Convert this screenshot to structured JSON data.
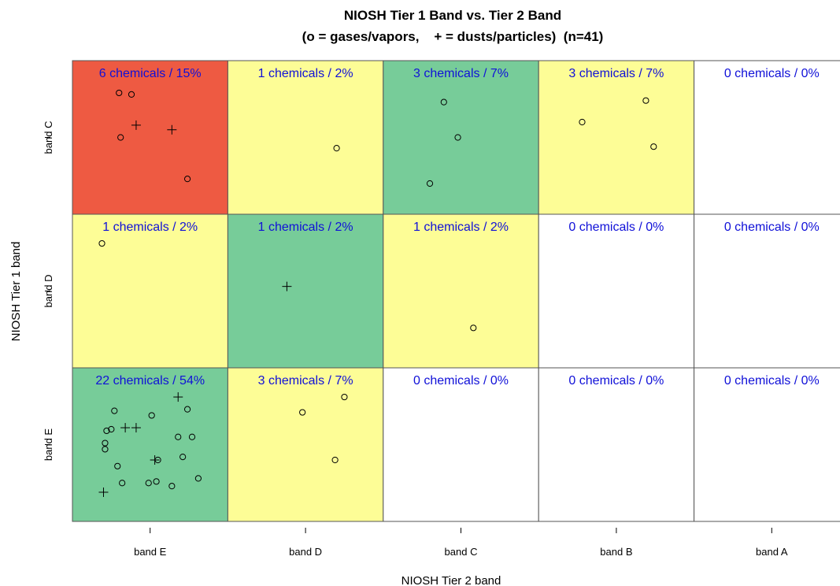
{
  "chart_data": {
    "type": "scatter",
    "title": "NIOSH Tier 1 Band vs. Tier 2 Band",
    "subtitle": "(o = gases/vapors,    + = dusts/particles)  (n=41)",
    "xlabel": "NIOSH Tier 2 band",
    "ylabel": "NIOSH Tier 1 band",
    "x_categories": [
      "band E",
      "band D",
      "band C",
      "band B",
      "band A"
    ],
    "y_categories": [
      "band E",
      "band D",
      "band C"
    ],
    "colors": {
      "red": "#ee5a42",
      "yellow": "#fdfd96",
      "green": "#77cc99",
      "white": "#ffffff",
      "label_text": "#1010d8",
      "grid": "#555555"
    },
    "cells": [
      {
        "x": "band E",
        "y": "band C",
        "label": "6 chemicals  /  15%",
        "fill": "red"
      },
      {
        "x": "band D",
        "y": "band C",
        "label": "1 chemicals  /  2%",
        "fill": "yellow"
      },
      {
        "x": "band C",
        "y": "band C",
        "label": "3 chemicals  /  7%",
        "fill": "green"
      },
      {
        "x": "band B",
        "y": "band C",
        "label": "3 chemicals  /  7%",
        "fill": "yellow"
      },
      {
        "x": "band A",
        "y": "band C",
        "label": "0 chemicals  /  0%",
        "fill": "white"
      },
      {
        "x": "band E",
        "y": "band D",
        "label": "1 chemicals  /  2%",
        "fill": "yellow"
      },
      {
        "x": "band D",
        "y": "band D",
        "label": "1 chemicals  /  2%",
        "fill": "green"
      },
      {
        "x": "band C",
        "y": "band D",
        "label": "1 chemicals  /  2%",
        "fill": "yellow"
      },
      {
        "x": "band B",
        "y": "band D",
        "label": "0 chemicals  /  0%",
        "fill": "white"
      },
      {
        "x": "band A",
        "y": "band D",
        "label": "0 chemicals  /  0%",
        "fill": "white"
      },
      {
        "x": "band E",
        "y": "band E",
        "label": "22 chemicals  /  54%",
        "fill": "green"
      },
      {
        "x": "band D",
        "y": "band E",
        "label": "3 chemicals  /  7%",
        "fill": "yellow"
      },
      {
        "x": "band C",
        "y": "band E",
        "label": "0 chemicals  /  0%",
        "fill": "white"
      },
      {
        "x": "band B",
        "y": "band E",
        "label": "0 chemicals  /  0%",
        "fill": "white"
      },
      {
        "x": "band A",
        "y": "band E",
        "label": "0 chemicals  /  0%",
        "fill": "white"
      }
    ],
    "points": [
      {
        "x": -0.2,
        "y": 2.29,
        "m": "o"
      },
      {
        "x": -0.12,
        "y": 2.28,
        "m": "o"
      },
      {
        "x": -0.09,
        "y": 2.08,
        "m": "+"
      },
      {
        "x": 0.14,
        "y": 2.05,
        "m": "+"
      },
      {
        "x": -0.19,
        "y": 2.0,
        "m": "o"
      },
      {
        "x": 0.24,
        "y": 1.73,
        "m": "o"
      },
      {
        "x": 1.2,
        "y": 1.93,
        "m": "o"
      },
      {
        "x": 1.89,
        "y": 2.23,
        "m": "o"
      },
      {
        "x": 1.98,
        "y": 2.0,
        "m": "o"
      },
      {
        "x": 1.8,
        "y": 1.7,
        "m": "o"
      },
      {
        "x": 2.78,
        "y": 2.1,
        "m": "o"
      },
      {
        "x": 3.19,
        "y": 2.24,
        "m": "o"
      },
      {
        "x": 3.24,
        "y": 1.94,
        "m": "o"
      },
      {
        "x": -0.31,
        "y": 1.31,
        "m": "o"
      },
      {
        "x": 0.88,
        "y": 1.03,
        "m": "+"
      },
      {
        "x": 2.08,
        "y": 0.76,
        "m": "o"
      },
      {
        "x": 0.18,
        "y": 0.31,
        "m": "+"
      },
      {
        "x": -0.23,
        "y": 0.22,
        "m": "o"
      },
      {
        "x": 0.24,
        "y": 0.23,
        "m": "o"
      },
      {
        "x": 0.01,
        "y": 0.19,
        "m": "o"
      },
      {
        "x": -0.16,
        "y": 0.11,
        "m": "+"
      },
      {
        "x": -0.25,
        "y": 0.1,
        "m": "o"
      },
      {
        "x": -0.28,
        "y": 0.09,
        "m": "o"
      },
      {
        "x": -0.09,
        "y": 0.11,
        "m": "+"
      },
      {
        "x": 0.18,
        "y": 0.05,
        "m": "o"
      },
      {
        "x": 0.27,
        "y": 0.05,
        "m": "o"
      },
      {
        "x": -0.29,
        "y": 0.01,
        "m": "o"
      },
      {
        "x": -0.29,
        "y": -0.03,
        "m": "o"
      },
      {
        "x": 0.03,
        "y": -0.1,
        "m": "+"
      },
      {
        "x": 0.05,
        "y": -0.1,
        "m": "o"
      },
      {
        "x": 0.21,
        "y": -0.08,
        "m": "o"
      },
      {
        "x": -0.21,
        "y": -0.14,
        "m": "o"
      },
      {
        "x": 0.31,
        "y": -0.22,
        "m": "o"
      },
      {
        "x": 0.04,
        "y": -0.24,
        "m": "o"
      },
      {
        "x": -0.18,
        "y": -0.25,
        "m": "o"
      },
      {
        "x": -0.01,
        "y": -0.25,
        "m": "o"
      },
      {
        "x": 0.14,
        "y": -0.27,
        "m": "o"
      },
      {
        "x": -0.3,
        "y": -0.31,
        "m": "+"
      },
      {
        "x": 1.25,
        "y": 0.31,
        "m": "o"
      },
      {
        "x": 0.98,
        "y": 0.21,
        "m": "o"
      },
      {
        "x": 1.19,
        "y": -0.1,
        "m": "o"
      }
    ]
  }
}
